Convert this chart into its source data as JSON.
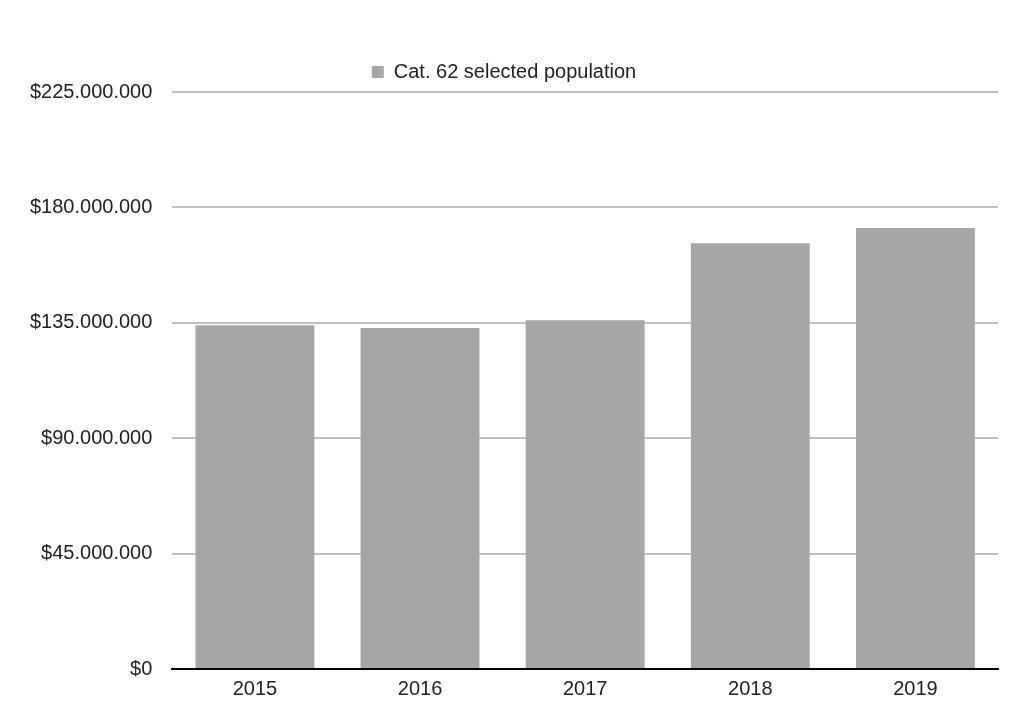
{
  "chart_data": {
    "type": "bar",
    "categories": [
      "2015",
      "2016",
      "2017",
      "2018",
      "2019"
    ],
    "series": [
      {
        "name": "Cat. 62 selected population",
        "color": "#a6a6a6",
        "values": [
          134000000,
          133000000,
          136000000,
          166000000,
          172000000
        ]
      }
    ],
    "ylim": [
      0,
      225000000
    ],
    "yticks": [
      {
        "value": 0,
        "label": "$0"
      },
      {
        "value": 45000000,
        "label": "$45.000.000"
      },
      {
        "value": 90000000,
        "label": "$90.000.000"
      },
      {
        "value": 135000000,
        "label": "$135.000.000"
      },
      {
        "value": 180000000,
        "label": "$180.000.000"
      },
      {
        "value": 225000000,
        "label": "$225.000.000"
      }
    ],
    "grid": "y",
    "legend": "top"
  }
}
